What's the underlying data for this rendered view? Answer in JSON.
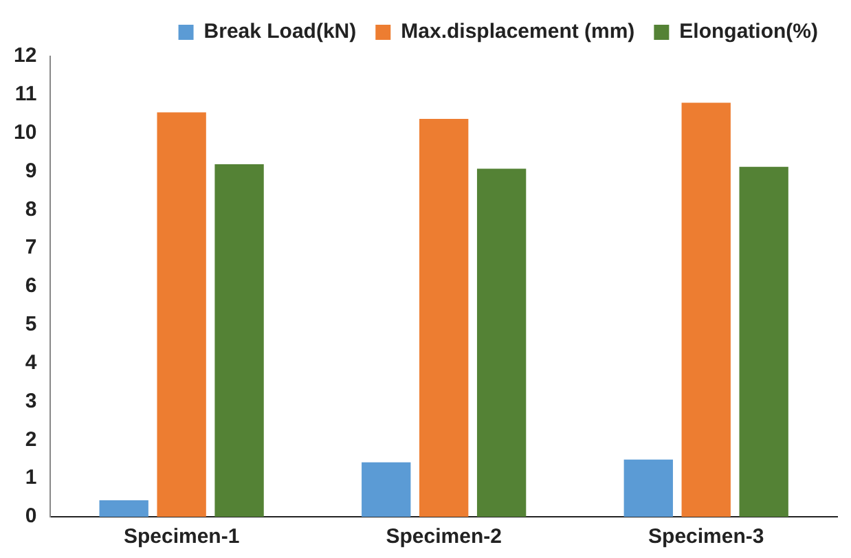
{
  "chart_data": {
    "type": "bar",
    "categories": [
      "Specimen-1",
      "Specimen-2",
      "Specimen-3"
    ],
    "series": [
      {
        "name": "Break Load(kN)",
        "color": "#5b9bd5",
        "values": [
          0.43,
          1.42,
          1.49
        ]
      },
      {
        "name": "Max.displacement (mm)",
        "color": "#ed7d31",
        "values": [
          10.54,
          10.37,
          10.79
        ]
      },
      {
        "name": "Elongation(%)",
        "color": "#548235",
        "values": [
          9.19,
          9.07,
          9.12
        ]
      }
    ],
    "ylim": [
      0,
      12
    ],
    "yticks": [
      0,
      1,
      2,
      3,
      4,
      5,
      6,
      7,
      8,
      9,
      10,
      11,
      12
    ],
    "grid": false,
    "legend": "top"
  }
}
